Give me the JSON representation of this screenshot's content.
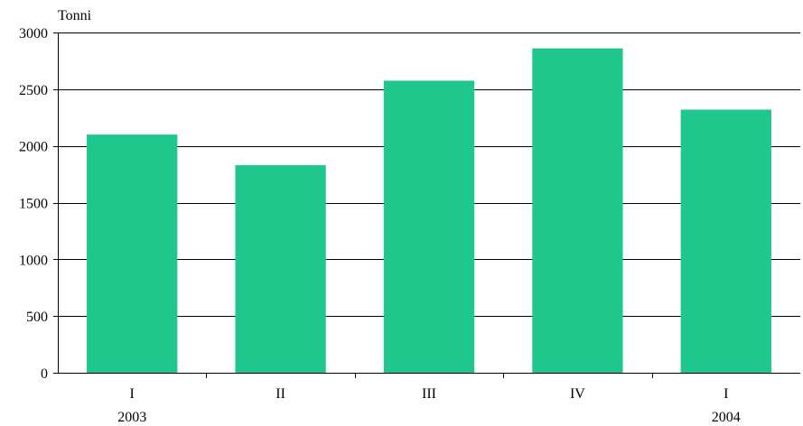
{
  "chart_data": {
    "type": "bar",
    "ylabel": "Tonni",
    "ylim": [
      0,
      3000
    ],
    "yticks": [
      0,
      500,
      1000,
      1500,
      2000,
      2500,
      3000
    ],
    "grid": true,
    "categories": [
      "I",
      "II",
      "III",
      "IV",
      "I"
    ],
    "category_sublabels": [
      "2003",
      "",
      "",
      "",
      "2004"
    ],
    "values": [
      2100,
      1830,
      2575,
      2860,
      2320
    ],
    "bar_color": "#20c78c"
  }
}
